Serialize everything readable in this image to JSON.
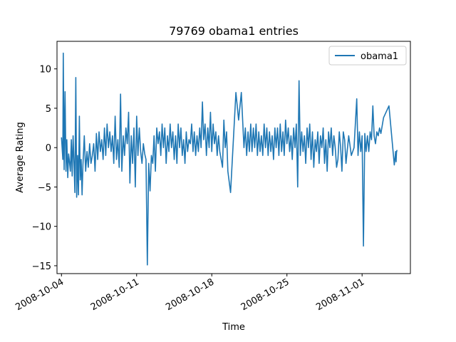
{
  "chart_data": {
    "type": "line",
    "title": "79769 obama1 entries",
    "xlabel": "Time",
    "ylabel": "Average Rating",
    "legend_position": "top-right",
    "grid": false,
    "x_axis_type": "date",
    "xlim": [
      "2008-10-03T14:00",
      "2008-11-05T12:00"
    ],
    "ylim": [
      -16,
      13.5
    ],
    "x_ticks": [
      "2008-10-04",
      "2008-10-11",
      "2008-10-18",
      "2008-10-25",
      "2008-11-01"
    ],
    "y_ticks": [
      -15,
      -10,
      -5,
      0,
      5,
      10
    ],
    "colors": {
      "series": "#1f77b4"
    },
    "series": [
      {
        "name": "obama1",
        "x": [
          "2008-10-04T00:00",
          "2008-10-04T03:00",
          "2008-10-04T04:00",
          "2008-10-04T06:00",
          "2008-10-04T08:00",
          "2008-10-04T10:00",
          "2008-10-04T12:00",
          "2008-10-04T14:00",
          "2008-10-04T16:00",
          "2008-10-04T18:00",
          "2008-10-04T20:00",
          "2008-10-04T22:00",
          "2008-10-05T00:00",
          "2008-10-05T02:00",
          "2008-10-05T04:00",
          "2008-10-05T06:00",
          "2008-10-05T08:00",
          "2008-10-05T10:00",
          "2008-10-05T12:00",
          "2008-10-05T14:00",
          "2008-10-05T16:00",
          "2008-10-05T18:00",
          "2008-10-05T20:00",
          "2008-10-05T22:00",
          "2008-10-06T00:00",
          "2008-10-06T03:00",
          "2008-10-06T06:00",
          "2008-10-06T09:00",
          "2008-10-06T12:00",
          "2008-10-06T15:00",
          "2008-10-06T18:00",
          "2008-10-06T21:00",
          "2008-10-07T00:00",
          "2008-10-07T03:00",
          "2008-10-07T06:00",
          "2008-10-07T09:00",
          "2008-10-07T12:00",
          "2008-10-07T15:00",
          "2008-10-07T18:00",
          "2008-10-07T21:00",
          "2008-10-08T00:00",
          "2008-10-08T03:00",
          "2008-10-08T06:00",
          "2008-10-08T09:00",
          "2008-10-08T12:00",
          "2008-10-08T15:00",
          "2008-10-08T18:00",
          "2008-10-08T21:00",
          "2008-10-09T00:00",
          "2008-10-09T03:00",
          "2008-10-09T06:00",
          "2008-10-09T09:00",
          "2008-10-09T12:00",
          "2008-10-09T15:00",
          "2008-10-09T18:00",
          "2008-10-09T21:00",
          "2008-10-10T00:00",
          "2008-10-10T03:00",
          "2008-10-10T06:00",
          "2008-10-10T09:00",
          "2008-10-10T12:00",
          "2008-10-10T15:00",
          "2008-10-10T18:00",
          "2008-10-10T21:00",
          "2008-10-11T00:00",
          "2008-10-11T03:00",
          "2008-10-11T06:00",
          "2008-10-11T09:00",
          "2008-10-11T12:00",
          "2008-10-11T15:00",
          "2008-10-11T18:00",
          "2008-10-11T21:00",
          "2008-10-12T00:00",
          "2008-10-12T03:00",
          "2008-10-12T06:00",
          "2008-10-12T09:00",
          "2008-10-12T12:00",
          "2008-10-12T15:00",
          "2008-10-12T18:00",
          "2008-10-12T21:00",
          "2008-10-13T00:00",
          "2008-10-13T03:00",
          "2008-10-13T06:00",
          "2008-10-13T09:00",
          "2008-10-13T12:00",
          "2008-10-13T15:00",
          "2008-10-13T18:00",
          "2008-10-13T21:00",
          "2008-10-14T00:00",
          "2008-10-14T03:00",
          "2008-10-14T06:00",
          "2008-10-14T09:00",
          "2008-10-14T12:00",
          "2008-10-14T15:00",
          "2008-10-14T18:00",
          "2008-10-14T21:00",
          "2008-10-15T00:00",
          "2008-10-15T03:00",
          "2008-10-15T06:00",
          "2008-10-15T09:00",
          "2008-10-15T12:00",
          "2008-10-15T15:00",
          "2008-10-15T18:00",
          "2008-10-15T21:00",
          "2008-10-16T00:00",
          "2008-10-16T03:00",
          "2008-10-16T06:00",
          "2008-10-16T09:00",
          "2008-10-16T12:00",
          "2008-10-16T15:00",
          "2008-10-16T18:00",
          "2008-10-16T21:00",
          "2008-10-17T00:00",
          "2008-10-17T03:00",
          "2008-10-17T06:00",
          "2008-10-17T09:00",
          "2008-10-17T12:00",
          "2008-10-17T15:00",
          "2008-10-17T18:00",
          "2008-10-17T21:00",
          "2008-10-18T00:00",
          "2008-10-18T03:00",
          "2008-10-18T06:00",
          "2008-10-18T09:00",
          "2008-10-18T12:00",
          "2008-10-18T15:00",
          "2008-10-18T18:00",
          "2008-10-18T21:00",
          "2008-10-19T00:00",
          "2008-10-19T03:00",
          "2008-10-19T06:00",
          "2008-10-19T09:00",
          "2008-10-19T12:00",
          "2008-10-19T18:00",
          "2008-10-20T06:00",
          "2008-10-20T12:00",
          "2008-10-20T18:00",
          "2008-10-21T00:00",
          "2008-10-21T03:00",
          "2008-10-21T06:00",
          "2008-10-21T09:00",
          "2008-10-21T12:00",
          "2008-10-21T15:00",
          "2008-10-21T18:00",
          "2008-10-21T21:00",
          "2008-10-22T00:00",
          "2008-10-22T03:00",
          "2008-10-22T06:00",
          "2008-10-22T09:00",
          "2008-10-22T12:00",
          "2008-10-22T15:00",
          "2008-10-22T18:00",
          "2008-10-22T21:00",
          "2008-10-23T00:00",
          "2008-10-23T03:00",
          "2008-10-23T06:00",
          "2008-10-23T09:00",
          "2008-10-23T12:00",
          "2008-10-23T15:00",
          "2008-10-23T18:00",
          "2008-10-23T21:00",
          "2008-10-24T00:00",
          "2008-10-24T03:00",
          "2008-10-24T06:00",
          "2008-10-24T09:00",
          "2008-10-24T12:00",
          "2008-10-24T15:00",
          "2008-10-24T18:00",
          "2008-10-24T21:00",
          "2008-10-25T00:00",
          "2008-10-25T03:00",
          "2008-10-25T06:00",
          "2008-10-25T09:00",
          "2008-10-25T12:00",
          "2008-10-25T15:00",
          "2008-10-25T18:00",
          "2008-10-25T21:00",
          "2008-10-26T00:00",
          "2008-10-26T03:00",
          "2008-10-26T06:00",
          "2008-10-26T09:00",
          "2008-10-26T12:00",
          "2008-10-26T15:00",
          "2008-10-26T18:00",
          "2008-10-26T21:00",
          "2008-10-27T00:00",
          "2008-10-27T03:00",
          "2008-10-27T06:00",
          "2008-10-27T09:00",
          "2008-10-27T12:00",
          "2008-10-27T15:00",
          "2008-10-27T18:00",
          "2008-10-27T21:00",
          "2008-10-28T00:00",
          "2008-10-28T03:00",
          "2008-10-28T06:00",
          "2008-10-28T09:00",
          "2008-10-28T12:00",
          "2008-10-28T15:00",
          "2008-10-28T18:00",
          "2008-10-28T21:00",
          "2008-10-29T00:00",
          "2008-10-29T03:00",
          "2008-10-29T06:00",
          "2008-10-29T09:00",
          "2008-10-29T12:00",
          "2008-10-29T15:00",
          "2008-10-29T18:00",
          "2008-10-29T21:00",
          "2008-10-30T00:00",
          "2008-10-30T03:00",
          "2008-10-30T06:00",
          "2008-10-30T09:00",
          "2008-10-30T12:00",
          "2008-10-30T18:00",
          "2008-10-31T00:00",
          "2008-10-31T06:00",
          "2008-10-31T12:00",
          "2008-10-31T15:00",
          "2008-10-31T18:00",
          "2008-10-31T21:00",
          "2008-11-01T00:00",
          "2008-11-01T03:00",
          "2008-11-01T06:00",
          "2008-11-01T09:00",
          "2008-11-01T12:00",
          "2008-11-01T15:00",
          "2008-11-01T18:00",
          "2008-11-01T21:00",
          "2008-11-02T00:00",
          "2008-11-02T03:00",
          "2008-11-02T06:00",
          "2008-11-02T09:00",
          "2008-11-02T12:00",
          "2008-11-02T15:00",
          "2008-11-02T18:00",
          "2008-11-03T00:00",
          "2008-11-03T12:00",
          "2008-11-04T00:00",
          "2008-11-04T03:00",
          "2008-11-04T04:00",
          "2008-11-04T05:00",
          "2008-11-04T06:00"
        ],
        "y": [
          1.3,
          -1.5,
          12.0,
          -2.8,
          7.1,
          -3.0,
          1.0,
          -3.8,
          -0.8,
          -1.9,
          -3.0,
          1.0,
          -3.6,
          1.5,
          -2.0,
          -5.7,
          8.9,
          -6.3,
          -1.0,
          -6.0,
          4.0,
          -4.1,
          -1.5,
          -6.0,
          -2.2,
          1.5,
          -3.0,
          -0.5,
          -2.5,
          0.5,
          -2.0,
          -1.0,
          0.5,
          -3.0,
          1.8,
          -1.5,
          2.0,
          -0.5,
          1.0,
          -1.5,
          2.5,
          -1.0,
          3.0,
          0.0,
          2.0,
          -0.5,
          1.5,
          -2.0,
          4.0,
          -1.5,
          1.0,
          -2.5,
          6.8,
          -3.0,
          1.5,
          -1.0,
          2.5,
          0.5,
          4.5,
          -4.5,
          1.5,
          -2.0,
          2.5,
          -5.0,
          4.0,
          -1.0,
          2.5,
          -0.5,
          -2.0,
          0.5,
          -0.8,
          -1.5,
          -14.9,
          -2.0,
          -5.5,
          -1.0,
          -2.0,
          1.5,
          -3.0,
          2.5,
          0.5,
          2.0,
          -1.0,
          3.0,
          0.0,
          2.5,
          -2.0,
          1.5,
          -0.5,
          3.0,
          0.0,
          2.0,
          -1.5,
          1.5,
          -2.0,
          3.0,
          0.0,
          2.5,
          -1.0,
          1.0,
          -2.0,
          2.0,
          -0.5,
          1.0,
          0.5,
          3.0,
          -0.5,
          2.0,
          -1.0,
          1.5,
          -0.5,
          2.5,
          0.0,
          5.8,
          1.0,
          3.0,
          -1.0,
          2.5,
          0.0,
          4.5,
          -0.5,
          3.0,
          0.5,
          2.0,
          -1.0,
          1.5,
          -0.5,
          -1.5,
          -2.5,
          3.5,
          0.0,
          2.0,
          -3.0,
          -5.7,
          7.0,
          3.5,
          7.0,
          0.0,
          2.5,
          -1.0,
          2.0,
          -0.5,
          3.0,
          -0.5,
          2.5,
          0.0,
          3.0,
          -1.0,
          2.0,
          -0.5,
          1.5,
          -1.0,
          3.0,
          0.0,
          2.5,
          -1.0,
          2.0,
          -0.5,
          1.5,
          -1.5,
          2.5,
          0.0,
          2.5,
          -1.0,
          3.0,
          -0.5,
          2.0,
          -1.0,
          3.5,
          0.5,
          2.5,
          -0.5,
          1.5,
          -1.5,
          2.5,
          0.0,
          3.0,
          -5.0,
          8.5,
          -1.0,
          2.0,
          -0.5,
          1.5,
          -2.0,
          2.5,
          0.0,
          3.0,
          -1.5,
          2.0,
          -2.5,
          1.0,
          -0.5,
          2.0,
          -2.0,
          1.5,
          0.0,
          2.5,
          -2.0,
          1.0,
          -3.0,
          2.0,
          0.0,
          2.5,
          -1.0,
          1.5,
          0.0,
          -2.5,
          -1.5,
          2.0,
          0.0,
          -3.0,
          2.0,
          1.0,
          -2.0,
          1.5,
          -1.0,
          0.0,
          6.2,
          -1.0,
          2.0,
          -0.5,
          1.5,
          -12.5,
          1.8,
          -0.5,
          1.5,
          -0.5,
          2.0,
          1.0,
          5.3,
          1.5,
          0.5,
          2.0,
          1.5,
          2.5,
          1.8,
          3.8,
          5.3,
          -2.2,
          -0.5,
          -1.8,
          -0.6,
          -0.3
        ]
      }
    ]
  }
}
